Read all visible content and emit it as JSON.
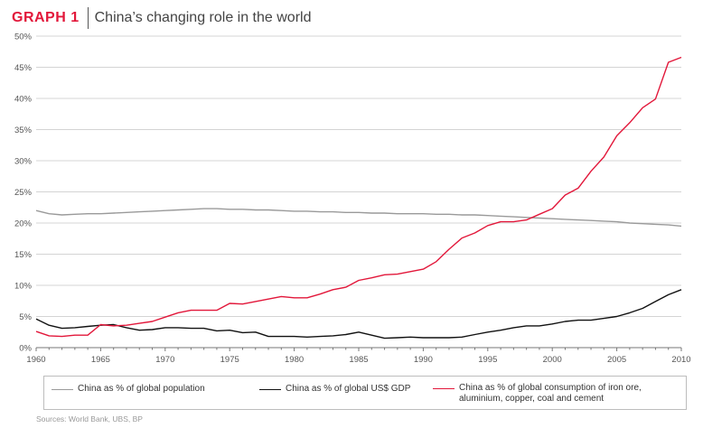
{
  "header": {
    "label": "GRAPH 1",
    "title": "China’s changing role in the world"
  },
  "source": "Sources: World Bank, UBS, BP",
  "colors": {
    "accent": "#e2173a",
    "population": "#9a9a9a",
    "gdp": "#111111",
    "commodities": "#e2173a",
    "grid": "#d4d4d4"
  },
  "chart_data": {
    "type": "line",
    "title": "China’s changing role in the world",
    "xlabel": "",
    "ylabel": "",
    "xlim": [
      1960,
      2010
    ],
    "ylim": [
      0,
      50
    ],
    "x_ticks": [
      1960,
      1965,
      1970,
      1975,
      1980,
      1985,
      1990,
      1995,
      2000,
      2005,
      2010
    ],
    "y_ticks": [
      "0%",
      "5%",
      "10%",
      "15%",
      "20%",
      "25%",
      "30%",
      "35%",
      "40%",
      "45%",
      "50%"
    ],
    "grid": "horizontal",
    "legend": "bottom",
    "x": [
      1960,
      1961,
      1962,
      1963,
      1964,
      1965,
      1966,
      1967,
      1968,
      1969,
      1970,
      1971,
      1972,
      1973,
      1974,
      1975,
      1976,
      1977,
      1978,
      1979,
      1980,
      1981,
      1982,
      1983,
      1984,
      1985,
      1986,
      1987,
      1988,
      1989,
      1990,
      1991,
      1992,
      1993,
      1994,
      1995,
      1996,
      1997,
      1998,
      1999,
      2000,
      2001,
      2002,
      2003,
      2004,
      2005,
      2006,
      2007,
      2008,
      2009,
      2010
    ],
    "series": [
      {
        "name": "China as % of global population",
        "color": "#9a9a9a",
        "values": [
          22.0,
          21.5,
          21.3,
          21.4,
          21.5,
          21.5,
          21.6,
          21.7,
          21.8,
          21.9,
          22.0,
          22.1,
          22.2,
          22.3,
          22.3,
          22.2,
          22.2,
          22.1,
          22.1,
          22.0,
          21.9,
          21.9,
          21.8,
          21.8,
          21.7,
          21.7,
          21.6,
          21.6,
          21.5,
          21.5,
          21.5,
          21.4,
          21.4,
          21.3,
          21.3,
          21.2,
          21.1,
          21.0,
          20.9,
          20.8,
          20.7,
          20.6,
          20.5,
          20.4,
          20.3,
          20.2,
          20.0,
          19.9,
          19.8,
          19.7,
          19.5
        ]
      },
      {
        "name": "China as % of global US$ GDP",
        "color": "#111111",
        "values": [
          4.6,
          3.6,
          3.1,
          3.2,
          3.4,
          3.6,
          3.7,
          3.2,
          2.8,
          2.9,
          3.2,
          3.2,
          3.1,
          3.1,
          2.7,
          2.8,
          2.4,
          2.5,
          1.8,
          1.8,
          1.8,
          1.7,
          1.8,
          1.9,
          2.1,
          2.5,
          2.0,
          1.5,
          1.6,
          1.7,
          1.6,
          1.6,
          1.6,
          1.7,
          2.1,
          2.5,
          2.8,
          3.2,
          3.5,
          3.5,
          3.8,
          4.2,
          4.4,
          4.4,
          4.7,
          5.0,
          5.6,
          6.3,
          7.4,
          8.5,
          9.3
        ]
      },
      {
        "name": "China as % of global consumption of iron ore, aluminium, copper, coal and cement",
        "color": "#e2173a",
        "values": [
          2.6,
          1.9,
          1.8,
          2.0,
          2.0,
          3.7,
          3.5,
          3.6,
          3.9,
          4.2,
          4.9,
          5.6,
          6.0,
          6.0,
          6.0,
          7.1,
          7.0,
          7.4,
          7.8,
          8.2,
          8.0,
          8.0,
          8.6,
          9.3,
          9.7,
          10.8,
          11.2,
          11.7,
          11.8,
          12.2,
          12.6,
          13.8,
          15.8,
          17.6,
          18.4,
          19.6,
          20.2,
          20.2,
          20.5,
          21.4,
          22.3,
          24.5,
          25.6,
          28.3,
          30.6,
          34.0,
          36.1,
          38.5,
          39.9,
          45.8,
          46.6
        ]
      }
    ]
  },
  "legend": {
    "population": "China as % of global population",
    "gdp": "China as % of global US$ GDP",
    "commodities_line1": "China as % of global consumption of iron ore,",
    "commodities_line2": "aluminium, copper, coal and cement"
  }
}
